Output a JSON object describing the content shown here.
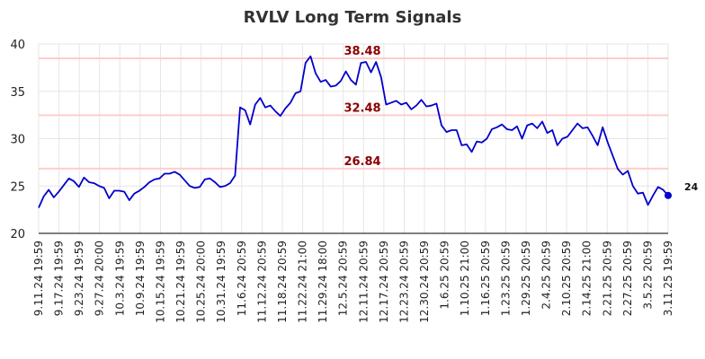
{
  "chart_data": {
    "type": "line",
    "title": "RVLV Long Term Signals",
    "xlabel": "",
    "ylabel": "",
    "ylim": [
      20,
      40
    ],
    "yticks": [
      "20",
      "25",
      "30",
      "35",
      "40"
    ],
    "grid": true,
    "x_tick_labels": [
      "9.11.24 19:59",
      "9.17.24 19:59",
      "9.23.24 19:59",
      "9.27.24 20:00",
      "10.3.24 19:59",
      "10.9.24 19:59",
      "10.15.24 19:59",
      "10.21.24 19:59",
      "10.25.24 20:00",
      "10.31.24 19:59",
      "11.6.24 20:59",
      "11.12.24 20:59",
      "11.18.24 20:59",
      "11.22.24 21:00",
      "11.29.24 18:00",
      "12.5.24 20:59",
      "12.11.24 20:59",
      "12.17.24 20:59",
      "12.23.24 20:59",
      "12.30.24 20:59",
      "1.6.25 20:59",
      "1.10.25 21:00",
      "1.16.25 20:59",
      "1.23.25 20:59",
      "1.29.25 20:59",
      "2.4.25 20:59",
      "2.10.25 20:59",
      "2.14.25 21:00",
      "2.21.25 20:59",
      "2.27.25 20:59",
      "3.5.25 20:59",
      "3.11.25 19:59"
    ],
    "series": [
      {
        "color": "#0000cc",
        "values": [
          22.7,
          23.9,
          24.6,
          23.8,
          24.4,
          25.1,
          25.8,
          25.5,
          24.9,
          25.9,
          25.4,
          25.3,
          25.0,
          24.8,
          23.7,
          24.5,
          24.5,
          24.4,
          23.5,
          24.2,
          24.5,
          24.9,
          25.4,
          25.7,
          25.8,
          26.3,
          26.3,
          26.5,
          26.2,
          25.6,
          25.0,
          24.8,
          24.9,
          25.7,
          25.8,
          25.4,
          24.9,
          25.0,
          25.3,
          26.1,
          33.3,
          33.0,
          31.5,
          33.6,
          34.3,
          33.3,
          33.5,
          32.9,
          32.4,
          33.2,
          33.8,
          34.8,
          35.0,
          38.0,
          38.7,
          36.9,
          36.0,
          36.2,
          35.5,
          35.6,
          36.1,
          37.1,
          36.2,
          35.7,
          38.0,
          38.1,
          37.0,
          38.1,
          36.5,
          33.6,
          33.8,
          34.0,
          33.6,
          33.8,
          33.1,
          33.5,
          34.1,
          33.4,
          33.5,
          33.7,
          31.4,
          30.7,
          30.9,
          30.9,
          29.3,
          29.4,
          28.6,
          29.7,
          29.6,
          30.0,
          31.0,
          31.2,
          31.5,
          31.0,
          30.9,
          31.3,
          30.0,
          31.4,
          31.6,
          31.1,
          31.8,
          30.6,
          30.9,
          29.3,
          30.0,
          30.2,
          30.9,
          31.6,
          31.1,
          31.2,
          30.3,
          29.3,
          31.2,
          29.6,
          28.2,
          26.8,
          26.2,
          26.6,
          25.0,
          24.2,
          24.3,
          23.0,
          24.0,
          24.9,
          24.6,
          24.0
        ]
      }
    ],
    "levels": [
      {
        "value": 38.48,
        "label": "38.48",
        "line_color": "#ffcccc",
        "label_color": "#8b0000"
      },
      {
        "value": 32.48,
        "label": "32.48",
        "line_color": "#ffcccc",
        "label_color": "#8b0000"
      },
      {
        "value": 26.84,
        "label": "26.84",
        "line_color": "#ffcccc",
        "label_color": "#8b0000"
      }
    ],
    "last_value_label": "24",
    "colors": {
      "line": "#0000cc",
      "grid": "#e6e6e6",
      "axis": "#000000",
      "level_line": "#ffcccc",
      "level_label": "#8b0000"
    }
  }
}
